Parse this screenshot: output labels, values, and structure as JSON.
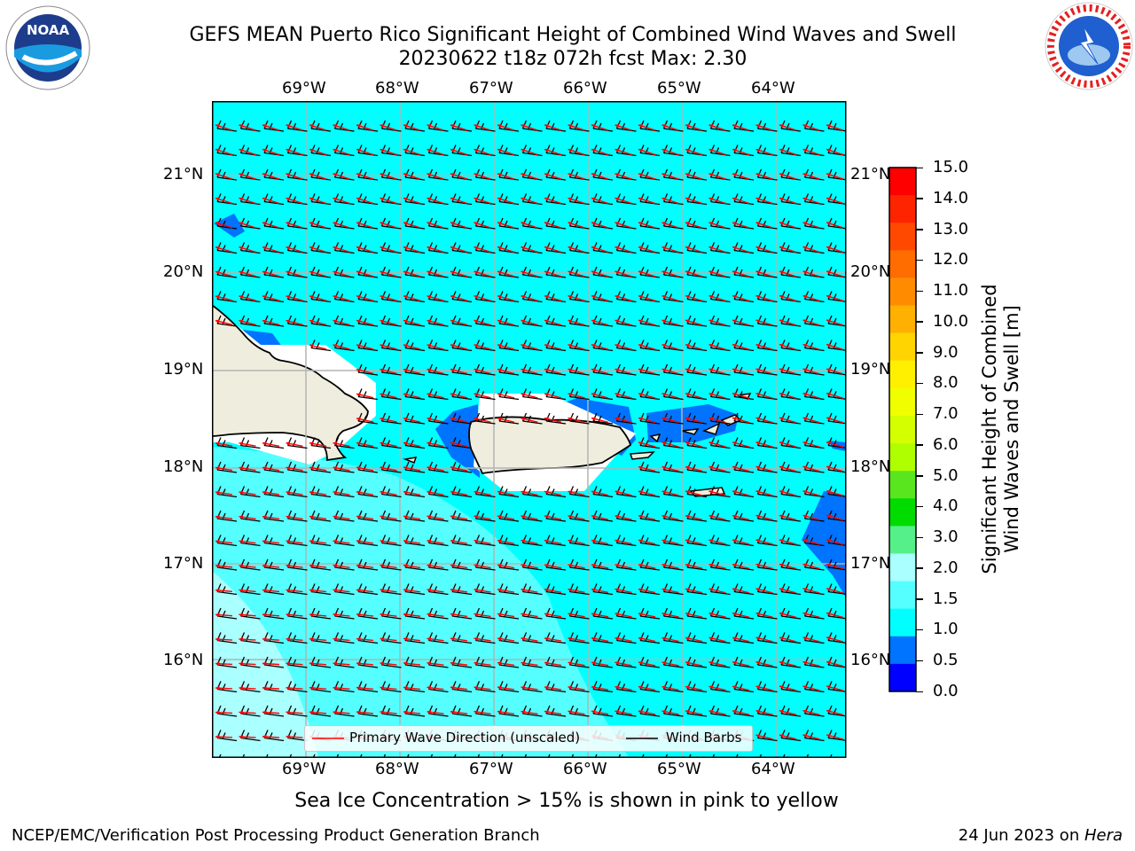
{
  "header": {
    "title_line1": "GEFS MEAN Puerto Rico Significant Height of Combined Wind Waves and Swell",
    "title_line2": "20230622 t18z 072h fcst   Max: 2.30"
  },
  "logos": {
    "noaa_text": "NOAA",
    "nws_ring": "NATIONAL WEATHER SERVICE"
  },
  "map": {
    "lon_labels": [
      "69°W",
      "68°W",
      "67°W",
      "66°W",
      "65°W",
      "64°W"
    ],
    "lat_labels": [
      "21°N",
      "20°N",
      "19°N",
      "18°N",
      "17°N",
      "16°N"
    ],
    "legend": {
      "wave_label": "Primary Wave Direction (unscaled)",
      "barb_label": "Wind Barbs"
    },
    "note": "Sea Ice Concentration > 15% is shown in pink to yellow"
  },
  "colorbar": {
    "label_line1": "Significant Height of Combined",
    "label_line2": "Wind Waves and Swell [m]",
    "ticks": [
      "15.0",
      "14.0",
      "13.0",
      "12.0",
      "11.0",
      "10.0",
      "9.0",
      "8.0",
      "7.0",
      "6.0",
      "5.0",
      "4.0",
      "3.0",
      "2.0",
      "1.5",
      "1.0",
      "0.5",
      "0.0"
    ],
    "colors": [
      "#ff0000",
      "#ff2400",
      "#ff4800",
      "#ff6c00",
      "#ff8c00",
      "#ffb000",
      "#ffd400",
      "#fff000",
      "#f0ff00",
      "#d4ff00",
      "#b0ff00",
      "#5ae61e",
      "#00dc00",
      "#55f08a",
      "#aaffff",
      "#55ffff",
      "#00ffff",
      "#0073ff",
      "#0000ff"
    ]
  },
  "footer": {
    "left": "NCEP/EMC/Verification Post Processing Product Generation Branch",
    "right_date": "24 Jun 2023 on ",
    "right_machine": "Hera"
  }
}
